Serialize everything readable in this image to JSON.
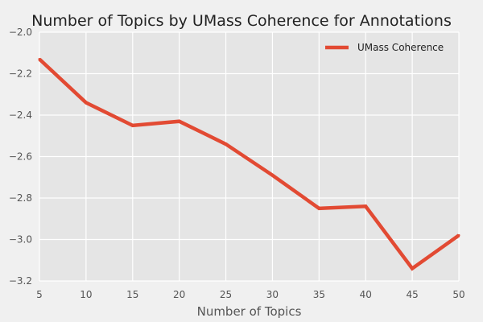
{
  "chart_data": {
    "type": "line",
    "title": "Number of Topics by UMass Coherence for Annotations",
    "xlabel": "Number of Topics",
    "ylabel": "",
    "x": [
      5,
      10,
      15,
      20,
      25,
      30,
      35,
      40,
      45,
      50
    ],
    "series": [
      {
        "name": "UMass Coherence",
        "values": [
          -2.13,
          -2.34,
          -2.45,
          -2.43,
          -2.54,
          -2.69,
          -2.85,
          -2.84,
          -3.14,
          -2.98
        ]
      }
    ],
    "xlim": [
      5,
      50
    ],
    "ylim": [
      -3.2,
      -2.0
    ],
    "xticks": [
      5,
      10,
      15,
      20,
      25,
      30,
      35,
      40,
      45,
      50
    ],
    "yticks": [
      -2.0,
      -2.2,
      -2.4,
      -2.6,
      -2.8,
      -3.0,
      -3.2
    ],
    "ytick_labels": [
      "−2.0",
      "−2.2",
      "−2.4",
      "−2.6",
      "−2.8",
      "−3.0",
      "−3.2"
    ],
    "grid": true,
    "legend_position": "top-right",
    "colors": {
      "line": "#e24a33",
      "plot_background": "#e5e5e5",
      "grid": "#ffffff",
      "figure_background": "#f0f0f0"
    }
  }
}
